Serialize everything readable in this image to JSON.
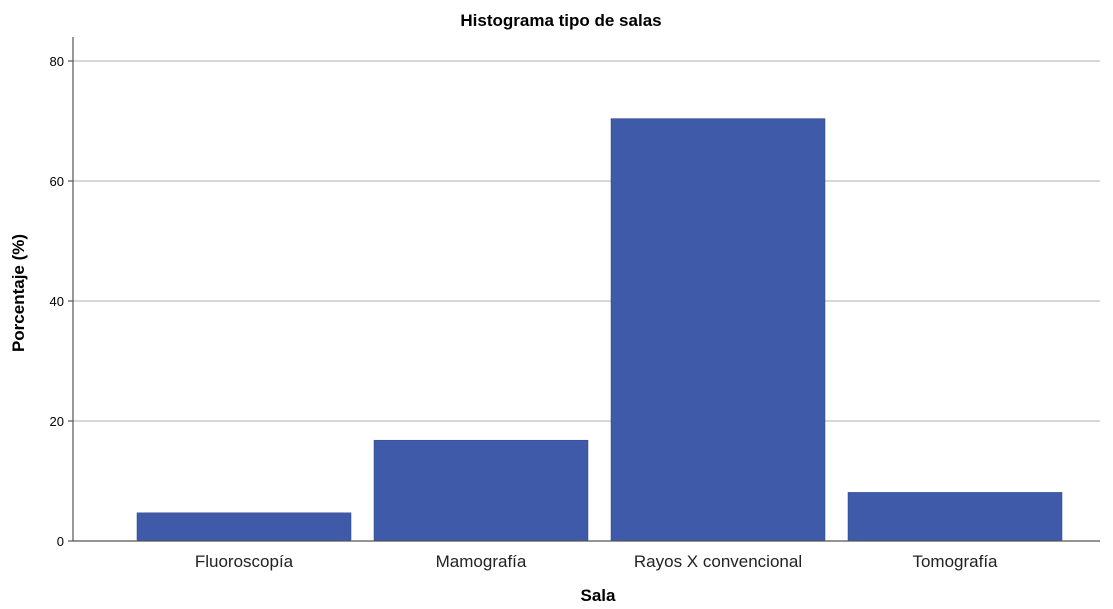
{
  "chart_data": {
    "type": "bar",
    "title": "Histograma tipo de salas",
    "xlabel": "Sala",
    "ylabel": "Porcentaje (%)",
    "categories": [
      "Fluoroscopía",
      "Mamografía",
      "Rayos X convencional",
      "Tomografía"
    ],
    "values": [
      4.7,
      16.8,
      70.4,
      8.1
    ],
    "ylim": [
      0,
      84
    ],
    "yticks": [
      "0",
      "20",
      "40",
      "60",
      "80"
    ],
    "grid": true,
    "legend": "none",
    "bar_color": "#3f5aa8"
  }
}
